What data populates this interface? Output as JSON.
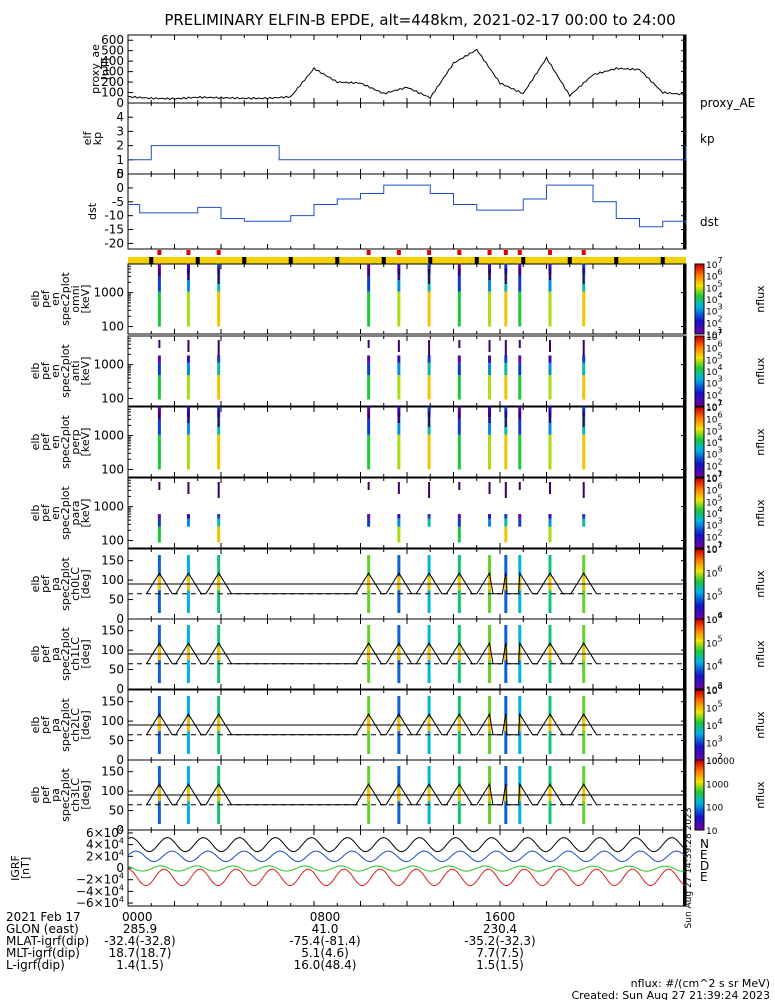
{
  "title": "PRELIMINARY ELFIN-B EPDE, alt=448km, 2021-02-17 00:00 to 24:00",
  "panels": {
    "ae": {
      "ylabel": [
        "proxy_ae",
        "[nT]"
      ],
      "ticks": [
        "0",
        "100",
        "200",
        "300",
        "400",
        "500",
        "600"
      ],
      "legend": "proxy_AE",
      "legend_color": "#000000"
    },
    "kp": {
      "ylabel": [
        "elf",
        "kp"
      ],
      "ticks": [
        "0",
        "1",
        "2",
        "3",
        "4"
      ],
      "legend": "kp",
      "legend_color": "#1f4fc4"
    },
    "dst": {
      "ylabel": [
        "dst"
      ],
      "ticks": [
        "5",
        "0",
        "-5",
        "-10",
        "-15",
        "-20"
      ],
      "legend": "dst",
      "legend_color": "#1f4fc4"
    },
    "spec": [
      {
        "ylabel": [
          "elb",
          "pef",
          "en",
          "spec2plot",
          "omni",
          "[keV]"
        ],
        "ticks": [
          "100",
          "1000"
        ],
        "cbar_ticks": [
          "10^7",
          "10^6",
          "10^5",
          "10^4",
          "10^3",
          "10^2",
          "10^1"
        ],
        "cbar_label": "nflux"
      },
      {
        "ylabel": [
          "elb",
          "pef",
          "en",
          "spec2plot",
          "anti",
          "[keV]"
        ],
        "ticks": [
          "100",
          "1000"
        ],
        "cbar_ticks": [
          "10^7",
          "10^6",
          "10^5",
          "10^4",
          "10^3",
          "10^2",
          "10^1"
        ],
        "cbar_label": "nflux"
      },
      {
        "ylabel": [
          "elb",
          "pef",
          "en",
          "spec2plot",
          "perp",
          "[keV]"
        ],
        "ticks": [
          "100",
          "1000"
        ],
        "cbar_ticks": [
          "10^7",
          "10^6",
          "10^5",
          "10^4",
          "10^3",
          "10^2",
          "10^1"
        ],
        "cbar_label": "nflux"
      },
      {
        "ylabel": [
          "elb",
          "pef",
          "en",
          "spec2plot",
          "para",
          "[keV]"
        ],
        "ticks": [
          "100",
          "1000"
        ],
        "cbar_ticks": [
          "10^7",
          "10^6",
          "10^5",
          "10^4",
          "10^3",
          "10^2",
          "10^1"
        ],
        "cbar_label": "nflux"
      },
      {
        "ylabel": [
          "elb",
          "pef",
          "pa",
          "spec2plot",
          "ch0LC",
          "[deg]"
        ],
        "ticks": [
          "0",
          "50",
          "100",
          "150"
        ],
        "cbar_ticks": [
          "10^7",
          "10^6",
          "10^5",
          "10^4"
        ],
        "cbar_label": "nflux"
      },
      {
        "ylabel": [
          "elb",
          "pef",
          "pa",
          "spec2plot",
          "ch1LC",
          "[deg]"
        ],
        "ticks": [
          "0",
          "50",
          "100",
          "150"
        ],
        "cbar_ticks": [
          "10^6",
          "10^5",
          "10^4",
          "10^3"
        ],
        "cbar_label": "nflux"
      },
      {
        "ylabel": [
          "elb",
          "pef",
          "pa",
          "spec2plot",
          "ch2LC",
          "[deg]"
        ],
        "ticks": [
          "0",
          "50",
          "100",
          "150"
        ],
        "cbar_ticks": [
          "10^6",
          "10^5",
          "10^4",
          "10^3",
          "10^2"
        ],
        "cbar_label": "nflux"
      },
      {
        "ylabel": [
          "elb",
          "pef",
          "pa",
          "spec2plot",
          "ch3LC",
          "[deg]"
        ],
        "ticks": [
          "0",
          "50",
          "100",
          "150"
        ],
        "cbar_ticks": [
          "10000",
          "1000",
          "100",
          "10"
        ],
        "cbar_label": "nflux"
      }
    ],
    "mag": {
      "ylabel": [
        "IGRF",
        "[nT]"
      ],
      "ticks": [
        "6×10^4",
        "4×10^4",
        "2×10^4",
        "0",
        "−2×10^4",
        "−4×10^4",
        "−6×10^4"
      ],
      "legend": [
        {
          "label": "N",
          "color": "#1f4fc4"
        },
        {
          "label": "E",
          "color": "#d42020"
        },
        {
          "label": "D",
          "color": "#d42020"
        },
        {
          "label": "E",
          "color": "#22c422"
        }
      ],
      "side_text": "Sun Aug 27 14:39:28 2023"
    }
  },
  "footer": {
    "rows": [
      [
        "2021 Feb 17",
        "0000",
        "0800",
        "1600"
      ],
      [
        "GLON (east)",
        "285.9",
        "41.0",
        "230.4"
      ],
      [
        "MLAT-igrf(dip)",
        "-32.4(-32.8)",
        "-75.4(-81.4)",
        "-35.2(-32.3)"
      ],
      [
        "MLT-igrf(dip)",
        "18.7(18.7)",
        "5.1(4.6)",
        "7.7(7.5)"
      ],
      [
        "L-igrf(dip)",
        "1.4(1.5)",
        "16.0(48.4)",
        "1.5(1.5)"
      ]
    ],
    "units": "nflux: #/(cm^2 s sr MeV)",
    "created": "Created: Sun Aug 27 21:39:24 2023"
  },
  "chart_data": {
    "type": "line",
    "time_range_hours": [
      0,
      24
    ],
    "ae_hourly": [
      60,
      45,
      40,
      55,
      50,
      45,
      45,
      60,
      330,
      200,
      190,
      90,
      150,
      50,
      380,
      510,
      190,
      90,
      430,
      70,
      270,
      330,
      320,
      100,
      80
    ],
    "ae_ylim": [
      0,
      650
    ],
    "kp": {
      "times": [
        0,
        1,
        6,
        6.5,
        8.5,
        24
      ],
      "values": [
        1,
        2,
        2,
        1,
        1,
        2
      ]
    },
    "kp_ylim": [
      0,
      5
    ],
    "dst": {
      "times": [
        0,
        0.5,
        1,
        2,
        3,
        3,
        4,
        4.5,
        5,
        6,
        7,
        8,
        9,
        10,
        11,
        12,
        13,
        14,
        15,
        16,
        17,
        18,
        19,
        20,
        21,
        22,
        23,
        24
      ],
      "values": [
        -6,
        -9,
        -9,
        -9,
        -7,
        -7,
        -11,
        -11,
        -12,
        -12,
        -10,
        -6,
        -4,
        -2,
        1,
        1,
        -2,
        -6,
        -8,
        -8,
        -4,
        1,
        1,
        -5,
        -11,
        -14,
        -12,
        -13
      ]
    },
    "dst_ylim": [
      -22,
      5
    ],
    "energy_ylim_keV": [
      60,
      7000
    ],
    "pitch_ylim_deg": [
      0,
      180
    ],
    "loss_cone_deg": 65,
    "perp_deg": 90,
    "science_zone_hours": [
      1.35,
      2.6,
      3.9,
      10.35,
      11.65,
      12.95,
      14.25,
      15.55,
      16.25,
      16.85,
      18.15,
      19.6
    ],
    "mag_ylim": [
      -65000,
      65000
    ]
  }
}
